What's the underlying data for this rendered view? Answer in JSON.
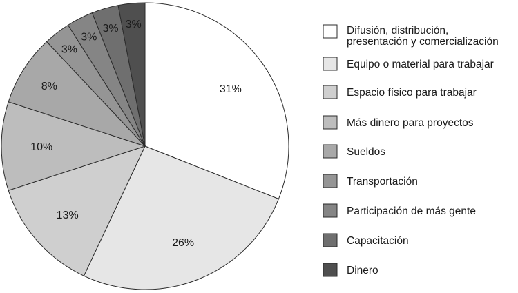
{
  "chart_data": {
    "type": "pie",
    "start_angle": "top",
    "direction": "clockwise",
    "legend_position": "right",
    "slices": [
      {
        "label": "Difusión, distribución, presentación y comercialización",
        "label_lines": [
          "Difusión, distribución,",
          "presentación y comercialización"
        ],
        "value": 31,
        "value_label": "31%",
        "color": "#ffffff"
      },
      {
        "label": "Equipo o material para trabajar",
        "value": 26,
        "value_label": "26%",
        "color": "#e6e6e6"
      },
      {
        "label": "Espacio físico para trabajar",
        "value": 13,
        "value_label": "13%",
        "color": "#cfcfcf"
      },
      {
        "label": "Más dinero para proyectos",
        "value": 10,
        "value_label": "10%",
        "color": "#bdbdbd"
      },
      {
        "label": "Sueldos",
        "value": 8,
        "value_label": "8%",
        "color": "#a8a8a8"
      },
      {
        "label": "Transportación",
        "value": 3,
        "value_label": "3%",
        "color": "#959595"
      },
      {
        "label": "Participación de más gente",
        "value": 3,
        "value_label": "3%",
        "color": "#858585"
      },
      {
        "label": "Capacitación",
        "value": 3,
        "value_label": "3%",
        "color": "#6f6f6f"
      },
      {
        "label": "Dinero",
        "value": 3,
        "value_label": "3%",
        "color": "#4f4f4f"
      }
    ]
  }
}
